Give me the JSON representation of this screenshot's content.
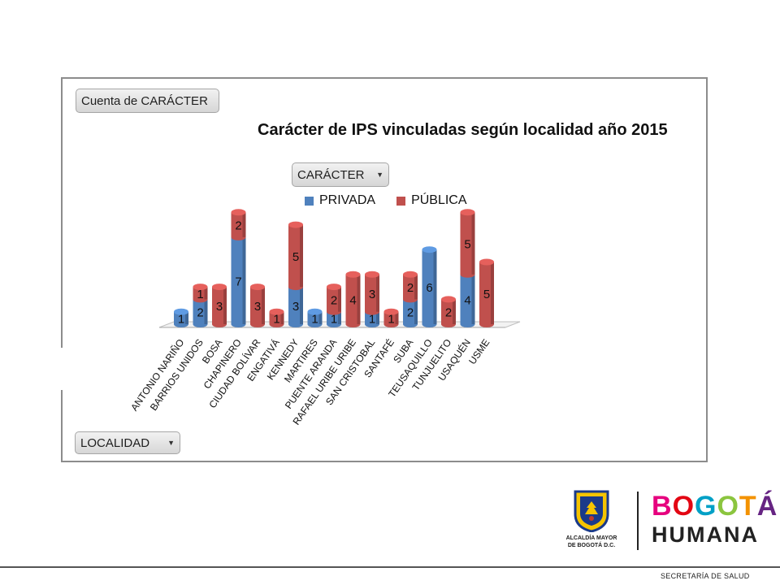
{
  "panel": {
    "value_field": "Cuenta de CARÁCTER",
    "series_field": "CARÁCTER",
    "axis_field": "LOCALIDAD"
  },
  "chart_data": {
    "type": "bar",
    "stacked": true,
    "three_d": true,
    "title": "Carácter de IPS vinculadas según localidad año 2015",
    "legend_position": "top",
    "categories": [
      "ANTONIO NARIÑO",
      "BARRIOS UNIDOS",
      "BOSA",
      "CHAPINERO",
      "CIUDAD BOLÍVAR",
      "ENGATIVÁ",
      "KENNEDY",
      "MARTIRES",
      "PUENTE ARANDA",
      "RAFAEL URIBE URIBE",
      "SAN CRISTOBAL",
      "SANTAFÉ",
      "SUBA",
      "TEUSAQUILLO",
      "TUNJUELITO",
      "USAQUÉN",
      "USME"
    ],
    "category_labels": [
      "ANTONIO NARIÑO",
      "BARRIOS UNIDOS",
      "BOSA",
      "CHAPINERO",
      "CIUDAD BOLÍVAR",
      "ENGATIVÁ",
      "KENNEDY",
      "MARTIRES",
      "PUENTE ARANDA",
      "RAFAEL URIBE URIBE",
      "SAN CRISTOBAL",
      "SANTAFÉ",
      "SUBA",
      "TEUSAQUILLO",
      "TUNJUELITO",
      "USAQUÉN",
      "USME"
    ],
    "series": [
      {
        "name": "PRIVADA",
        "color": "#4f81bd",
        "values": [
          1,
          2,
          null,
          7,
          null,
          null,
          3,
          1,
          1,
          null,
          1,
          null,
          2,
          6,
          null,
          4,
          null
        ]
      },
      {
        "name": "PÚBLICA",
        "color": "#c0504d",
        "values": [
          null,
          1,
          3,
          2,
          3,
          1,
          5,
          null,
          2,
          4,
          3,
          1,
          2,
          null,
          2,
          5,
          5
        ]
      }
    ],
    "data_labels": true,
    "grid": false
  },
  "logos": {
    "alcaldia_line1": "ALCALDÍA MAYOR",
    "alcaldia_line2": "DE BOGOTÁ D.C.",
    "brand_word1": "BOGOTÁ",
    "brand_word2": "HUMANA",
    "brand_colors": [
      "#e6007e",
      "#e30613",
      "#00a0c6",
      "#8bc53f",
      "#f39200",
      "#662483"
    ]
  },
  "footer": {
    "text": "SECRETARÍA DE SALUD"
  }
}
